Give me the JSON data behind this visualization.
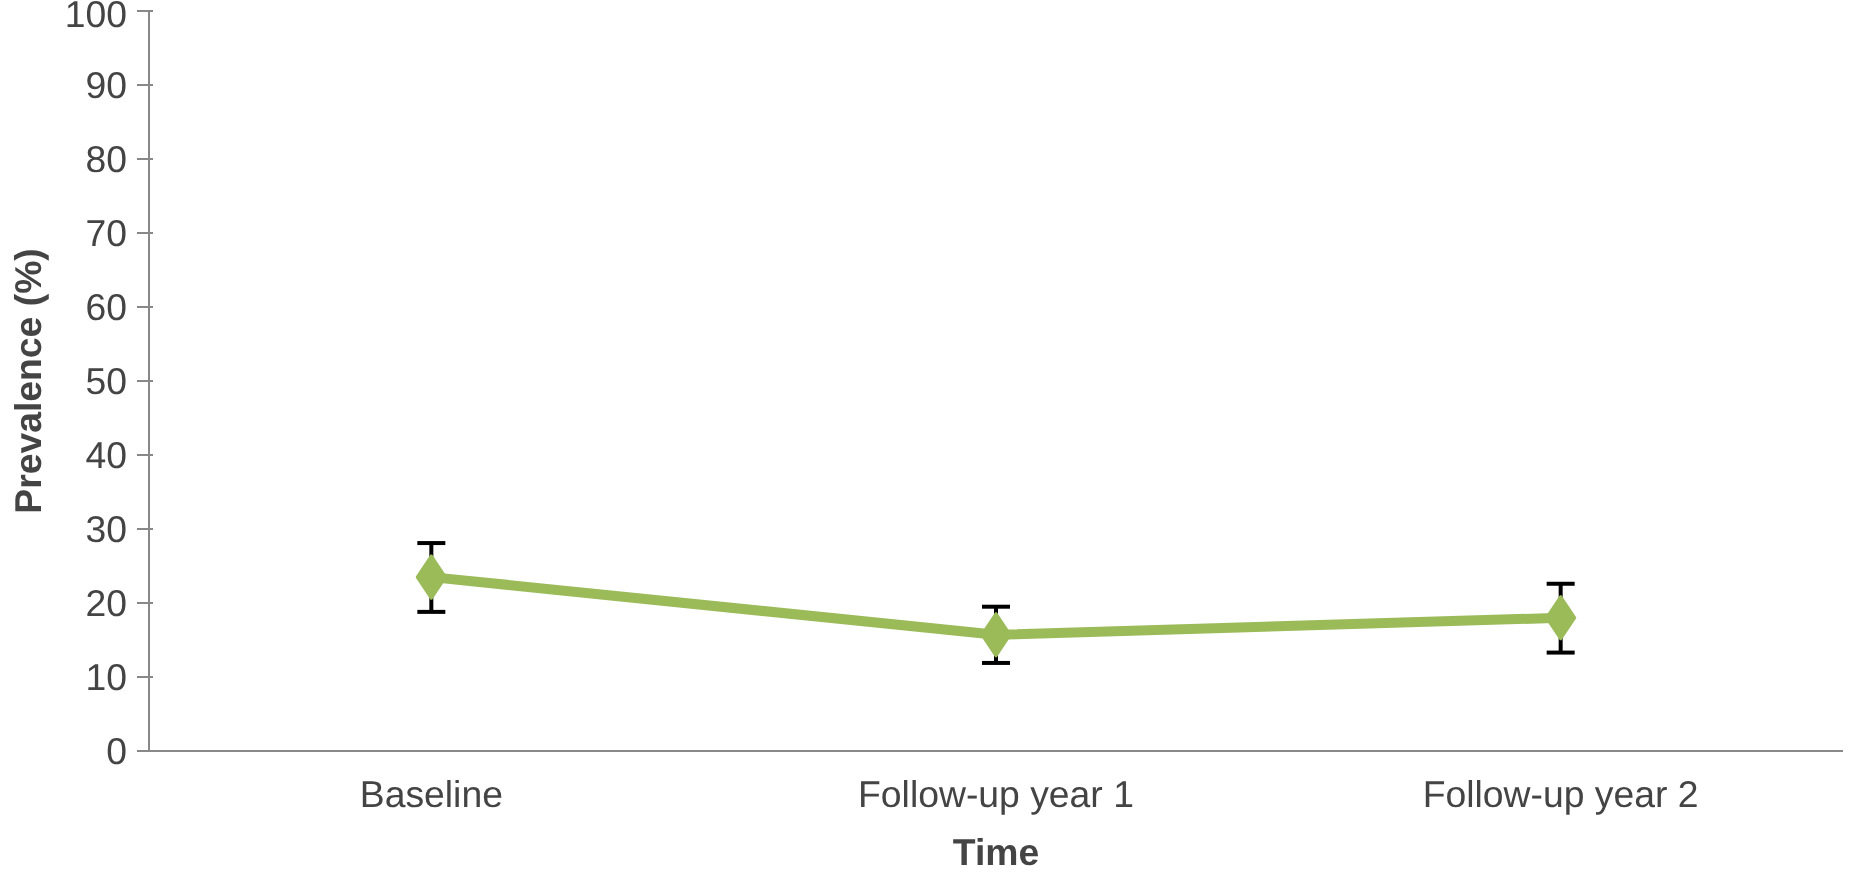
{
  "chart_data": {
    "type": "line",
    "xlabel": "Time",
    "ylabel": "Prevalence (%)",
    "categories": [
      "Baseline",
      "Follow-up year 1",
      "Follow-up year 2"
    ],
    "series": [
      {
        "color": "#9bbb59",
        "values": [
          23.5,
          15.7,
          18.0
        ],
        "errors": [
          [
            18.8,
            28.1
          ],
          [
            11.9,
            19.5
          ],
          [
            13.3,
            22.6
          ]
        ]
      }
    ],
    "ylim": [
      0,
      100
    ],
    "yticks": [
      0,
      10,
      20,
      30,
      40,
      50,
      60,
      70,
      80,
      90,
      100
    ],
    "marker": "diamond",
    "line_style": "solid",
    "grid": false
  }
}
